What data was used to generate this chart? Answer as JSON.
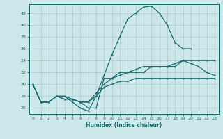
{
  "xlabel": "Humidex (Indice chaleur)",
  "background_color": "#cce8e8",
  "grid_color": "#aacccc",
  "line_color": "#1a6b6b",
  "xlim": [
    -0.5,
    23.5
  ],
  "ylim": [
    25,
    43.5
  ],
  "xticks": [
    0,
    1,
    2,
    3,
    4,
    5,
    6,
    7,
    8,
    9,
    10,
    11,
    12,
    13,
    14,
    15,
    16,
    17,
    18,
    19,
    20,
    21,
    22,
    23
  ],
  "yticks": [
    26,
    28,
    30,
    32,
    34,
    36,
    38,
    40,
    42
  ],
  "line1_x": [
    0,
    1,
    2,
    3,
    4,
    5,
    6,
    7,
    8,
    9,
    10,
    11,
    12,
    13,
    14,
    15,
    16,
    17,
    18,
    19,
    20
  ],
  "line1_y": [
    30,
    27,
    27,
    28,
    28,
    27,
    26,
    25.5,
    28,
    31.5,
    35,
    38,
    41,
    42,
    43,
    43.2,
    42,
    40,
    37,
    36,
    36
  ],
  "line2_x": [
    0,
    1,
    2,
    3,
    4,
    5,
    6,
    7,
    8,
    9,
    10,
    11,
    12,
    13,
    14,
    15,
    16,
    17,
    18,
    19,
    20,
    21,
    22,
    23
  ],
  "line2_y": [
    30,
    27,
    27,
    28,
    27.5,
    27.5,
    27,
    27,
    28.5,
    30,
    31,
    31.5,
    32,
    32.5,
    33,
    33,
    33,
    33,
    33.5,
    34,
    33.5,
    33,
    32,
    31.5
  ],
  "line3_x": [
    0,
    1,
    2,
    3,
    4,
    5,
    6,
    7,
    8,
    9,
    10,
    11,
    12,
    13,
    14,
    15,
    16,
    17,
    18,
    19,
    20,
    21,
    22,
    23
  ],
  "line3_y": [
    30,
    27,
    27,
    28,
    27.5,
    27.5,
    27,
    27,
    28,
    29.5,
    30,
    30.5,
    30.5,
    31,
    31,
    31,
    31,
    31,
    31,
    31,
    31,
    31,
    31,
    31
  ],
  "line4_x": [
    3,
    4,
    5,
    6,
    7,
    8,
    9,
    10,
    11,
    12,
    13,
    14,
    15,
    16,
    17,
    18,
    19,
    20,
    21,
    22,
    23
  ],
  "line4_y": [
    28,
    28,
    27.5,
    27,
    26,
    26,
    31,
    31,
    32,
    32,
    32,
    32,
    33,
    33,
    33,
    33,
    34,
    34,
    34,
    34,
    34
  ]
}
